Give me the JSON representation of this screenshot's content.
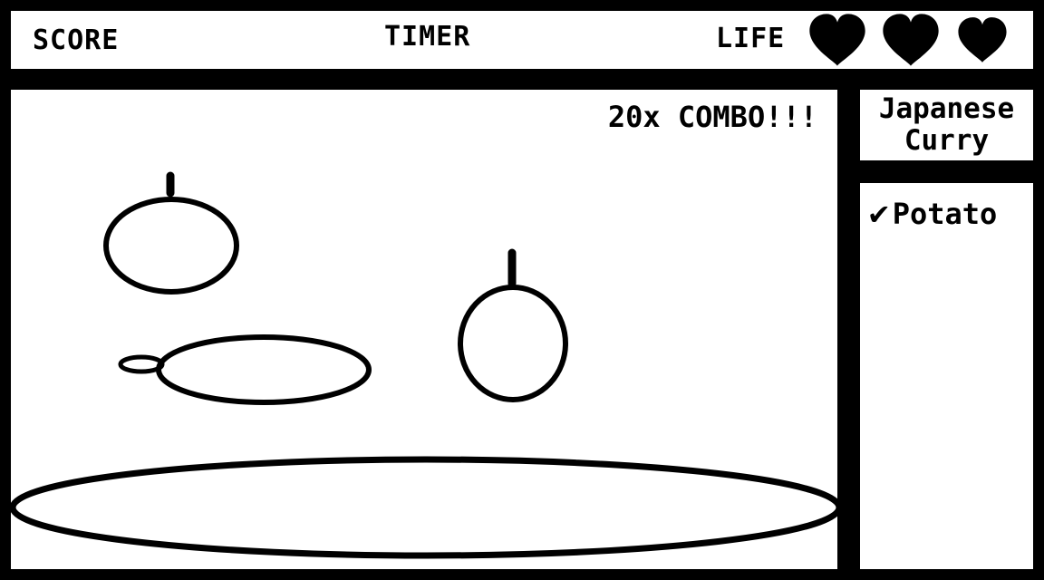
{
  "hud": {
    "score_label": "SCORE",
    "timer_label": "TIMER",
    "life_label": "LIFE",
    "lives_remaining": 3,
    "heart_icon": "heart-icon"
  },
  "game": {
    "combo_text": "20x COMBO!!!",
    "objects": [
      "falling-ingredient",
      "falling-ingredient",
      "falling-ingredient",
      "cooking-pot"
    ]
  },
  "recipe": {
    "name_line1": "Japanese",
    "name_line2": "Curry"
  },
  "ingredients": [
    {
      "check_icon": "✔",
      "name": "Potato",
      "collected": true
    }
  ],
  "colors": {
    "foreground": "#000000",
    "background": "#ffffff"
  }
}
